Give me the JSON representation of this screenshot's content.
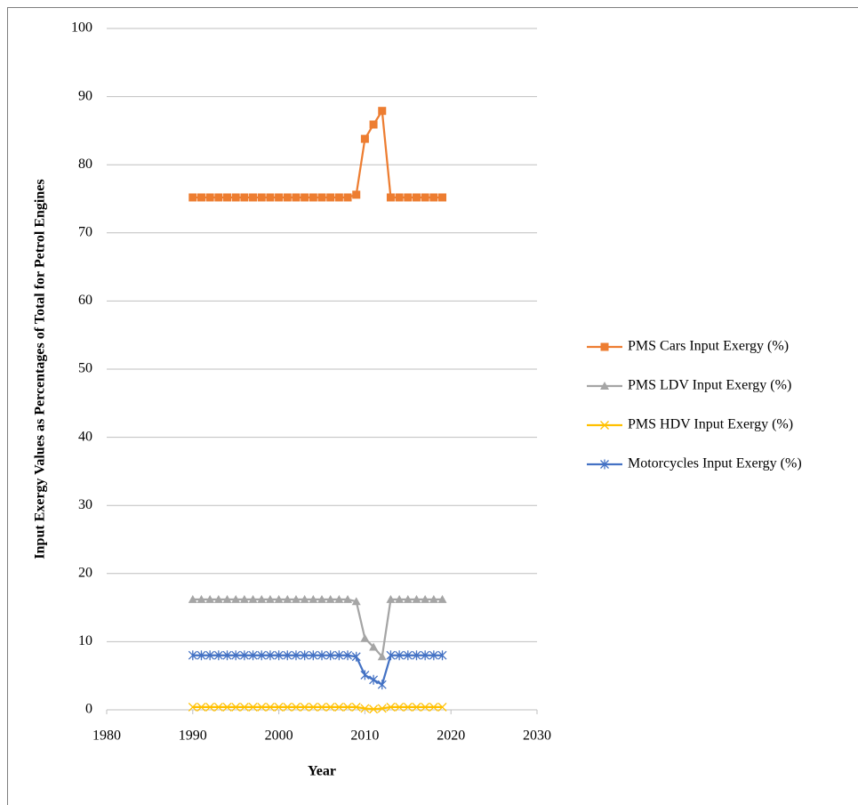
{
  "chart_data": {
    "type": "line",
    "y_label": "Input Exergy Values as Percentages of Total for Petrol Engines",
    "x_label": "Year",
    "x": [
      1990,
      1991,
      1992,
      1993,
      1994,
      1995,
      1996,
      1997,
      1998,
      1999,
      2000,
      2001,
      2002,
      2003,
      2004,
      2005,
      2006,
      2007,
      2008,
      2009,
      2010,
      2011,
      2012,
      2013,
      2014,
      2015,
      2016,
      2017,
      2018,
      2019
    ],
    "series": [
      {
        "name": "PMS Cars Input Exergy (%)",
        "color": "#ed7d31",
        "marker": "square",
        "values": [
          75.2,
          75.2,
          75.2,
          75.2,
          75.2,
          75.2,
          75.2,
          75.2,
          75.2,
          75.2,
          75.2,
          75.2,
          75.2,
          75.2,
          75.2,
          75.2,
          75.2,
          75.2,
          75.2,
          75.6,
          83.8,
          85.9,
          87.9,
          75.2,
          75.2,
          75.2,
          75.2,
          75.2,
          75.2,
          75.2
        ]
      },
      {
        "name": "PMS LDV Input Exergy (%)",
        "color": "#a5a5a5",
        "marker": "triangle",
        "values": [
          16.2,
          16.2,
          16.2,
          16.2,
          16.2,
          16.2,
          16.2,
          16.2,
          16.2,
          16.2,
          16.2,
          16.2,
          16.2,
          16.2,
          16.2,
          16.2,
          16.2,
          16.2,
          16.2,
          15.9,
          10.5,
          9.2,
          7.8,
          16.2,
          16.2,
          16.2,
          16.2,
          16.2,
          16.2,
          16.2
        ]
      },
      {
        "name": "PMS HDV Input Exergy (%)",
        "color": "#ffc000",
        "marker": "x",
        "values": [
          0.4,
          0.4,
          0.4,
          0.4,
          0.4,
          0.4,
          0.4,
          0.4,
          0.4,
          0.4,
          0.4,
          0.4,
          0.4,
          0.4,
          0.4,
          0.4,
          0.4,
          0.4,
          0.4,
          0.4,
          0.2,
          0.1,
          0.2,
          0.4,
          0.4,
          0.4,
          0.4,
          0.4,
          0.4,
          0.4
        ]
      },
      {
        "name": "Motorcycles Input Exergy (%)",
        "color": "#4472c4",
        "marker": "asterisk",
        "values": [
          8,
          8,
          8,
          8,
          8,
          8,
          8,
          8,
          8,
          8,
          8,
          8,
          8,
          8,
          8,
          8,
          8,
          8,
          8,
          7.8,
          5.1,
          4.4,
          3.7,
          8,
          8,
          8,
          8,
          8,
          8,
          8
        ]
      }
    ],
    "xlim": [
      1980,
      2030
    ],
    "xticks": [
      1980,
      1990,
      2000,
      2010,
      2020,
      2030
    ],
    "ylim": [
      0,
      100
    ],
    "yticks": [
      0,
      10,
      20,
      30,
      40,
      50,
      60,
      70,
      80,
      90,
      100
    ],
    "grid": true,
    "legend": "right"
  }
}
